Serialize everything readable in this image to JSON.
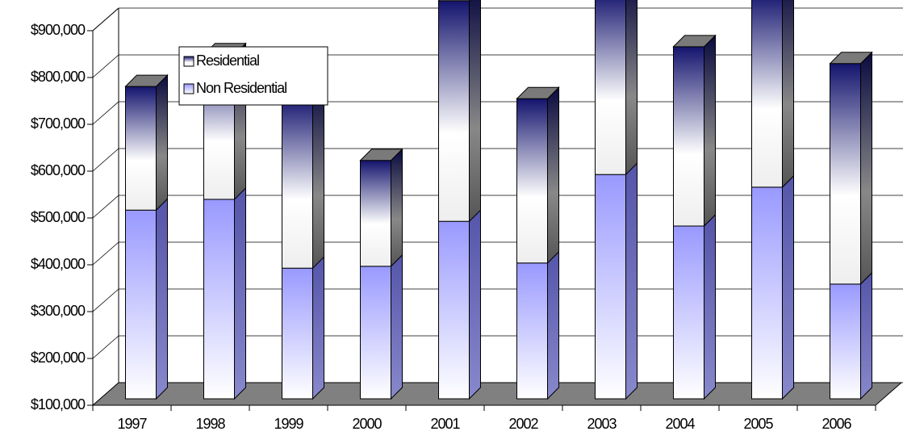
{
  "chart_data": {
    "type": "stacked-bar-3d",
    "categories": [
      "1997",
      "1998",
      "1999",
      "2000",
      "2001",
      "2002",
      "2003",
      "2004",
      "2005",
      "2006"
    ],
    "series": [
      {
        "name": "Non Residential",
        "color": "#9999ff",
        "values": [
          403000,
          426000,
          279000,
          283000,
          379000,
          290000,
          479000,
          369000,
          452000,
          245000
        ]
      },
      {
        "name": "Residential",
        "color": "#000080",
        "values": [
          264000,
          309000,
          366000,
          226000,
          471000,
          351000,
          392000,
          383000,
          417000,
          471000
        ]
      }
    ],
    "ylim": [
      100000,
      900000
    ],
    "yticks": [
      {
        "value": 100000,
        "label": "$100,000"
      },
      {
        "value": 200000,
        "label": "$200,000"
      },
      {
        "value": 300000,
        "label": "$300,000"
      },
      {
        "value": 400000,
        "label": "$400,000"
      },
      {
        "value": 500000,
        "label": "$500,000"
      },
      {
        "value": 600000,
        "label": "$600,000"
      },
      {
        "value": 700000,
        "label": "$700,000"
      },
      {
        "value": 800000,
        "label": "$800,000"
      },
      {
        "value": 900000,
        "label": "$900,000"
      }
    ],
    "grid": true,
    "legend": "top-left"
  }
}
